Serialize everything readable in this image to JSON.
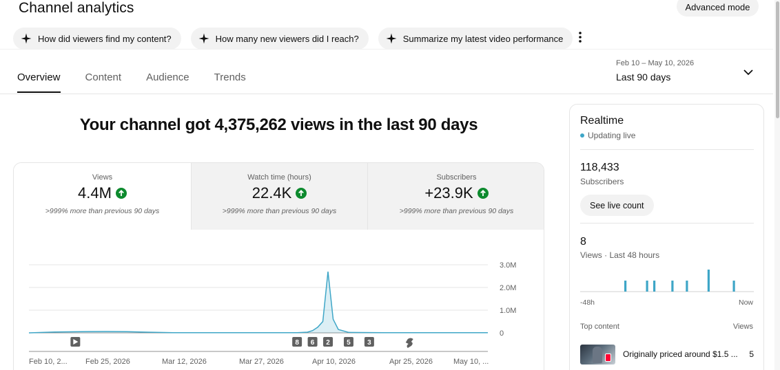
{
  "header": {
    "title": "Channel analytics",
    "advanced_mode_label": "Advanced mode"
  },
  "chips": [
    {
      "label": "How did viewers find my content?",
      "icon": "sparkle-icon"
    },
    {
      "label": "How many new viewers did I reach?",
      "icon": "sparkle-icon"
    },
    {
      "label": "Summarize my latest video performance",
      "icon": "sparkle-icon"
    }
  ],
  "tabs": [
    {
      "label": "Overview",
      "active": true
    },
    {
      "label": "Content",
      "active": false
    },
    {
      "label": "Audience",
      "active": false
    },
    {
      "label": "Trends",
      "active": false
    }
  ],
  "date_range": {
    "range": "Feb 10 – May 10, 2026",
    "label": "Last 90 days"
  },
  "headline": "Your channel got 4,375,262 views in the last 90 days",
  "metrics": [
    {
      "label": "Views",
      "value": "4.4M",
      "note": ">999% more than previous 90 days"
    },
    {
      "label": "Watch time (hours)",
      "value": "22.4K",
      "note": ">999% more than previous 90 days"
    },
    {
      "label": "Subscribers",
      "value": "+23.9K",
      "note": ">999% more than previous 90 days"
    }
  ],
  "chart_data": {
    "type": "area",
    "title": "",
    "xlabel": "",
    "ylabel": "",
    "x_tick_labels": [
      "Feb 10, 2...",
      "Feb 25, 2026",
      "Mar 12, 2026",
      "Mar 27, 2026",
      "Apr 10, 2026",
      "Apr 25, 2026",
      "May 10, ..."
    ],
    "y_tick_labels": [
      "3.0M",
      "2.0M",
      "1.0M",
      "0"
    ],
    "ylim": [
      0,
      3000000
    ],
    "grid": true,
    "series": [
      {
        "color": "#3ea6c7",
        "x": [
          "Feb 10",
          "Feb 15",
          "Feb 20",
          "Feb 25",
          "Mar 1",
          "Mar 5",
          "Mar 10",
          "Mar 20",
          "Mar 30",
          "Apr 3",
          "Apr 5",
          "Apr 6",
          "Apr 7",
          "Apr 8",
          "Apr 9",
          "Apr 10",
          "Apr 11",
          "Apr 13",
          "Apr 20",
          "May 1",
          "May 10"
        ],
        "values": [
          0,
          40000,
          55000,
          60000,
          55000,
          30000,
          10000,
          5000,
          5000,
          10000,
          30000,
          100000,
          250000,
          500000,
          2700000,
          600000,
          150000,
          20000,
          10000,
          5000,
          5000
        ]
      }
    ],
    "markers": [
      {
        "label": "",
        "kind": "video",
        "x": "Feb 19"
      },
      {
        "label": "8",
        "kind": "count",
        "x": "Apr 3"
      },
      {
        "label": "6",
        "kind": "count",
        "x": "Apr 6"
      },
      {
        "label": "2",
        "kind": "count",
        "x": "Apr 9"
      },
      {
        "label": "5",
        "kind": "count",
        "x": "Apr 13"
      },
      {
        "label": "3",
        "kind": "count",
        "x": "Apr 17"
      },
      {
        "label": "",
        "kind": "short",
        "x": "Apr 25"
      }
    ]
  },
  "realtime": {
    "title": "Realtime",
    "status": "Updating live",
    "subscribers_value": "118,433",
    "subscribers_label": "Subscribers",
    "live_count_label": "See live count",
    "views_value": "8",
    "views_label": "Views · Last 48 hours",
    "axis_left": "-48h",
    "axis_right": "Now",
    "bars": [
      0,
      0,
      0,
      0,
      0,
      0,
      0,
      0,
      0,
      0,
      0,
      0,
      1,
      0,
      0,
      0,
      0,
      0,
      1,
      0,
      1,
      0,
      0,
      0,
      0,
      1,
      0,
      0,
      0,
      1,
      0,
      0,
      0,
      0,
      0,
      2,
      0,
      0,
      0,
      0,
      0,
      0,
      1,
      0,
      0,
      0,
      0,
      0
    ],
    "top_content_label": "Top content",
    "top_views_label": "Views",
    "top_items": [
      {
        "title": "Originally priced around $1.5 ...",
        "views": "5"
      }
    ]
  }
}
